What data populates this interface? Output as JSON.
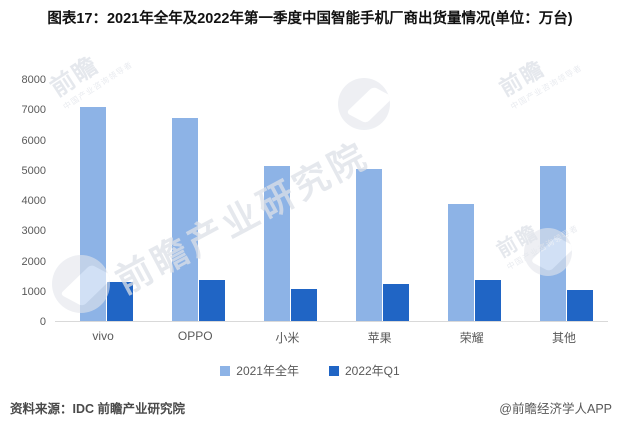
{
  "title": "图表17：2021年全年及2022年第一季度中国智能手机厂商出货量情况(单位：万台)",
  "footer": {
    "source": "资料来源：IDC 前瞻产业研究院",
    "credit": "@前瞻经济学人APP"
  },
  "watermarks": {
    "brand": "前瞻",
    "tagline": "中国产业咨询领导者",
    "research": "前瞻产业研究院"
  },
  "colors": {
    "series_2021": "#8DB3E6",
    "series_q1": "#2065C5",
    "axis_text": "#595959",
    "baseline": "#D9D9D9"
  },
  "chart_data": {
    "type": "bar",
    "title": "2021年全年及2022年第一季度中国智能手机厂商出货量",
    "unit": "万台",
    "categories": [
      "vivo",
      "OPPO",
      "小米",
      "苹果",
      "荣耀",
      "其他"
    ],
    "series": [
      {
        "name": "2021年全年",
        "color": "#8DB3E6",
        "values": [
          7100,
          6750,
          5130,
          5060,
          3870,
          5160
        ]
      },
      {
        "name": "2022年Q1",
        "color": "#2065C5",
        "values": [
          1290,
          1370,
          1070,
          1240,
          1350,
          1020
        ]
      }
    ],
    "ylim": [
      0,
      8000
    ],
    "y_ticks": [
      0,
      1000,
      2000,
      3000,
      4000,
      5000,
      6000,
      7000,
      8000
    ],
    "grid": false,
    "legend_position": "bottom"
  }
}
